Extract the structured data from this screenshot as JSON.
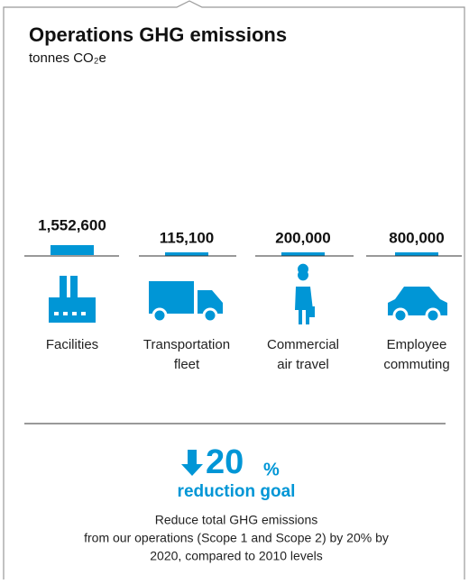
{
  "header": {
    "title": "Operations GHG emissions",
    "subtitle": "tonnes CO₂e"
  },
  "items": [
    {
      "value": "1,552,600",
      "label": [
        "Facilities"
      ]
    },
    {
      "value": "115,100",
      "label": [
        "Transportation",
        "fleet"
      ]
    },
    {
      "value": "200,000",
      "label": [
        "Commercial",
        "air travel"
      ]
    },
    {
      "value": "800,000",
      "label": [
        "Employee",
        "commuting"
      ]
    }
  ],
  "goal": {
    "figure": "20",
    "unit": "%",
    "caption": "reduction goal",
    "text": [
      "Reduce total GHG emissions",
      "from our operations (Scope 1 and Scope 2) by 20% by",
      "2020, compared to 2010 levels"
    ]
  }
}
